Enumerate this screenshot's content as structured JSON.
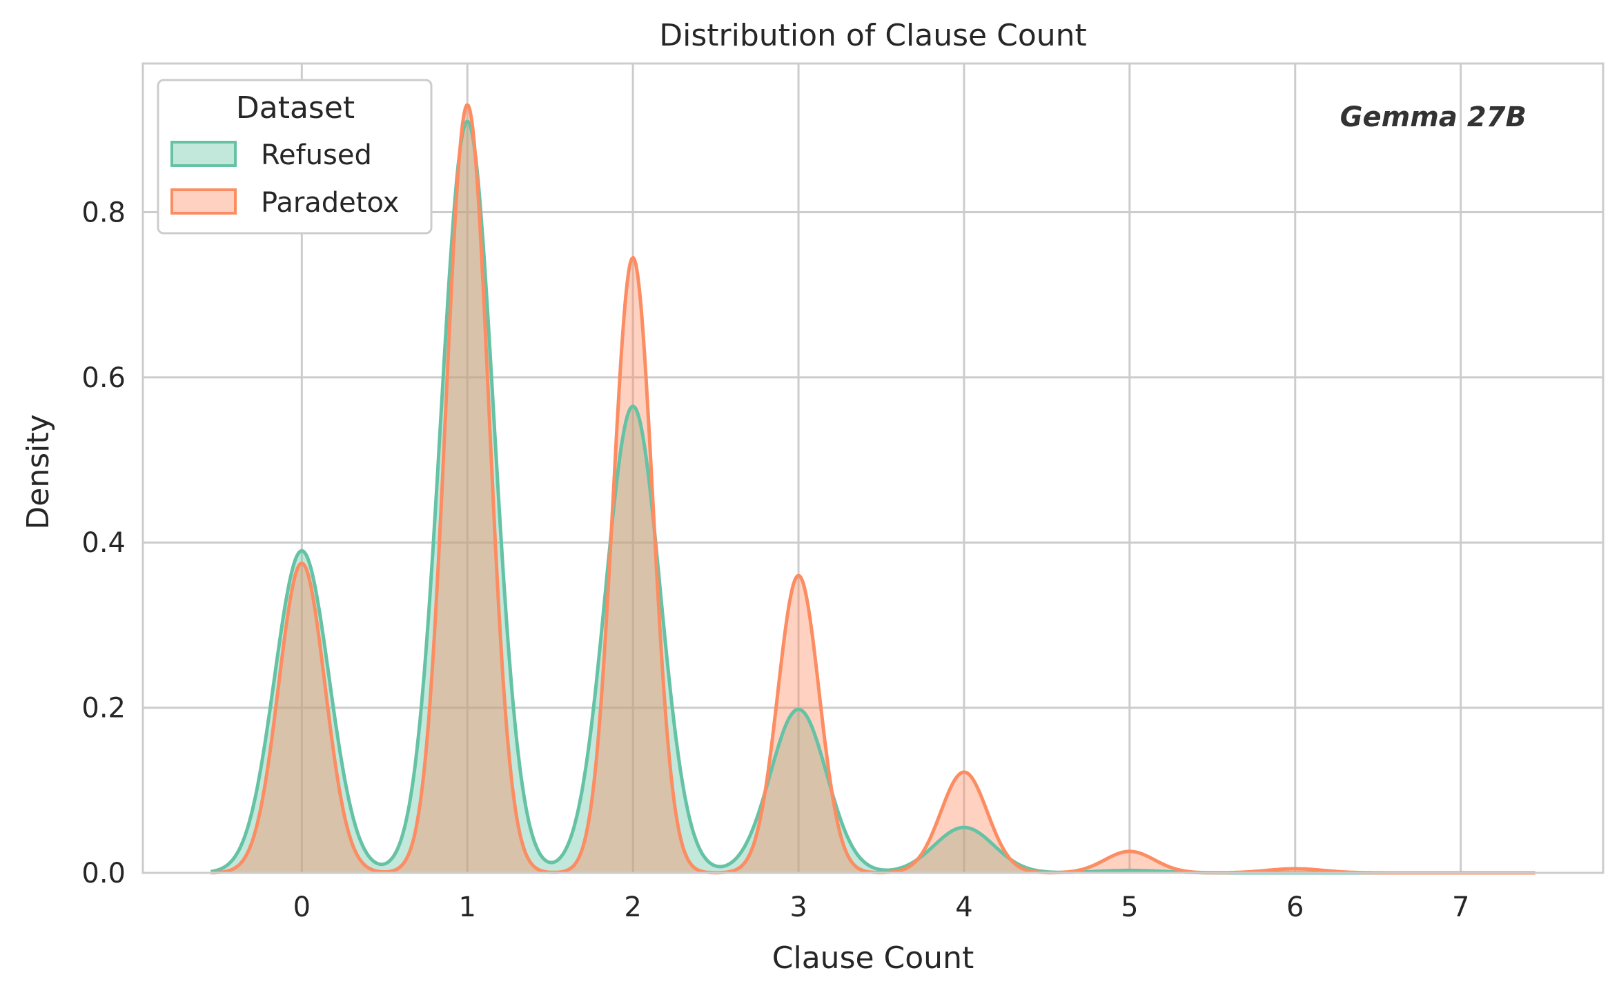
{
  "chart_data": {
    "type": "area",
    "title": "Distribution of Clause Count",
    "xlabel": "Clause Count",
    "ylabel": "Density",
    "xlim": [
      -0.96,
      7.86
    ],
    "ylim": [
      0,
      0.98
    ],
    "xticks": [
      0,
      1,
      2,
      3,
      4,
      5,
      6,
      7
    ],
    "yticks": [
      0.0,
      0.2,
      0.4,
      0.6,
      0.8
    ],
    "ytick_labels": [
      "0.0",
      "0.2",
      "0.4",
      "0.6",
      "0.8"
    ],
    "grid": true,
    "legend": {
      "title": "Dataset",
      "position": "top-left"
    },
    "annotation": "Gemma 27B",
    "x_range": [
      -0.55,
      7.45
    ],
    "series": [
      {
        "name": "Refused",
        "color": "#66c2a5",
        "peaks": [
          {
            "x": 0,
            "height": 0.39,
            "width": 0.165
          },
          {
            "x": 1,
            "height": 0.91,
            "width": 0.16
          },
          {
            "x": 2,
            "height": 0.565,
            "width": 0.165
          },
          {
            "x": 3,
            "height": 0.198,
            "width": 0.17
          },
          {
            "x": 4,
            "height": 0.055,
            "width": 0.18
          },
          {
            "x": 5,
            "height": 0.003,
            "width": 0.2
          }
        ]
      },
      {
        "name": "Paradetox",
        "color": "#fc8d62",
        "peaks": [
          {
            "x": 0,
            "height": 0.375,
            "width": 0.14
          },
          {
            "x": 1,
            "height": 0.93,
            "width": 0.13
          },
          {
            "x": 2,
            "height": 0.745,
            "width": 0.12
          },
          {
            "x": 3,
            "height": 0.36,
            "width": 0.125
          },
          {
            "x": 4,
            "height": 0.122,
            "width": 0.14
          },
          {
            "x": 5,
            "height": 0.026,
            "width": 0.15
          },
          {
            "x": 6,
            "height": 0.005,
            "width": 0.17
          }
        ]
      }
    ]
  }
}
